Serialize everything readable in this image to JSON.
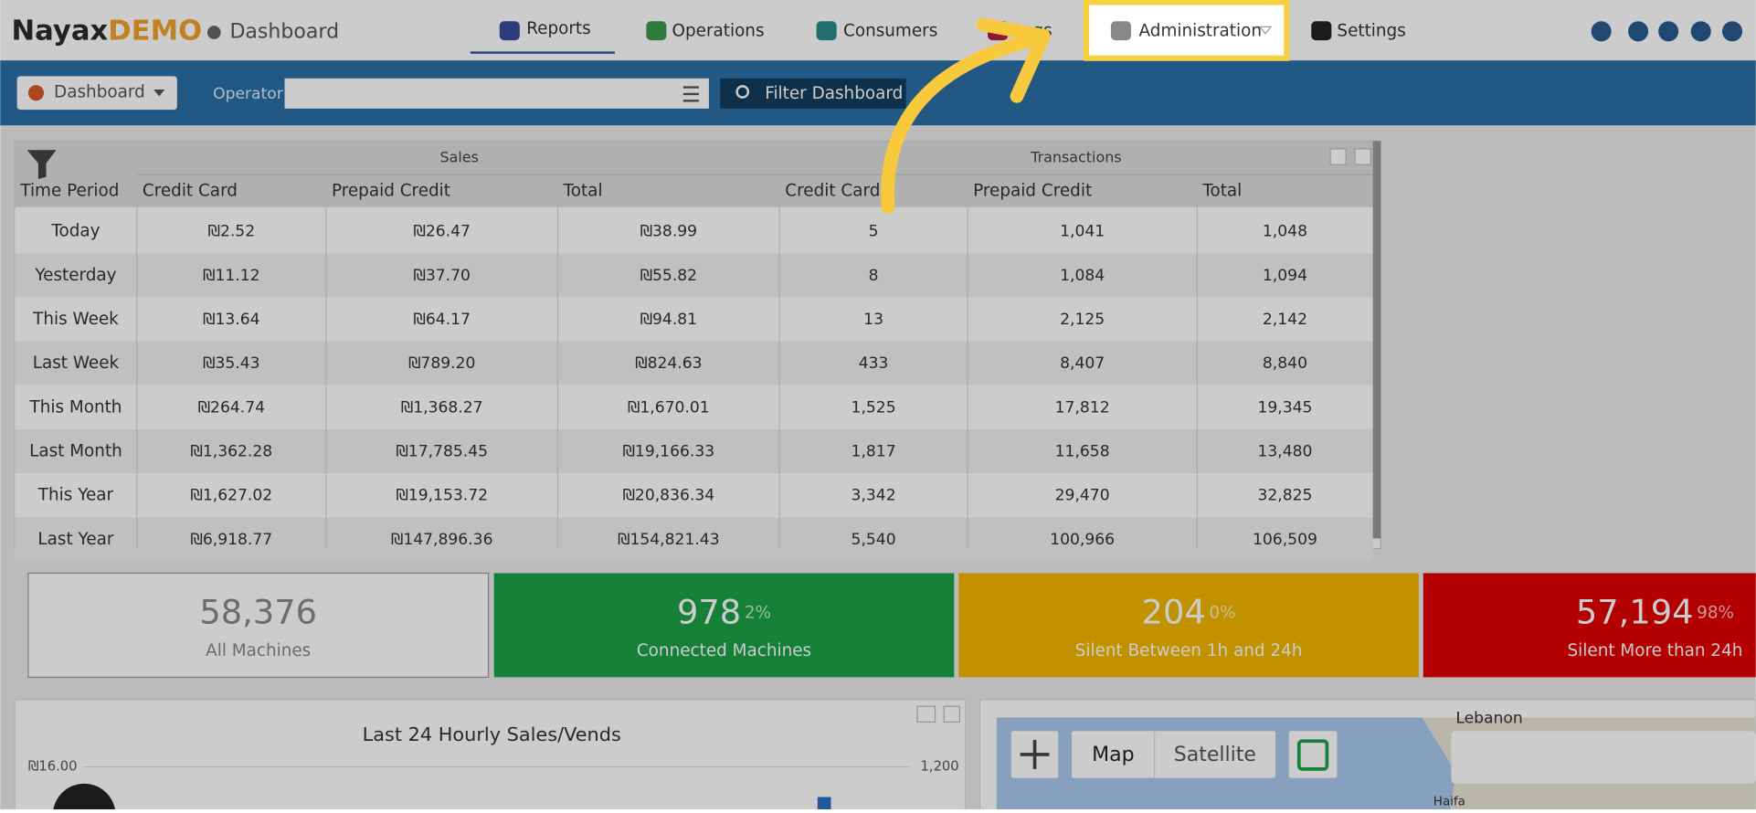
{
  "header": {
    "logo": "Nayax",
    "logo_suffix": "DEMO",
    "page": "Dashboard",
    "nav": [
      "Reports",
      "Operations",
      "Consumers",
      "Logs",
      "Administration",
      "Settings"
    ]
  },
  "toolbar": {
    "dashboard_button": "Dashboard",
    "operator_label": "Operator",
    "filter_button": "Filter Dashboard"
  },
  "table": {
    "group_headers": [
      "Sales",
      "Transactions"
    ],
    "columns": [
      "Time Period",
      "Credit Card",
      "Prepaid Credit",
      "Total",
      "Credit Card",
      "Prepaid Credit",
      "Total"
    ],
    "rows": [
      [
        "Today",
        "₪2.52",
        "₪26.47",
        "₪38.99",
        "5",
        "1,041",
        "1,048"
      ],
      [
        "Yesterday",
        "₪11.12",
        "₪37.70",
        "₪55.82",
        "8",
        "1,084",
        "1,094"
      ],
      [
        "This Week",
        "₪13.64",
        "₪64.17",
        "₪94.81",
        "13",
        "2,125",
        "2,142"
      ],
      [
        "Last Week",
        "₪35.43",
        "₪789.20",
        "₪824.63",
        "433",
        "8,407",
        "8,840"
      ],
      [
        "This Month",
        "₪264.74",
        "₪1,368.27",
        "₪1,670.01",
        "1,525",
        "17,812",
        "19,345"
      ],
      [
        "Last Month",
        "₪1,362.28",
        "₪17,785.45",
        "₪19,166.33",
        "1,817",
        "11,658",
        "13,480"
      ],
      [
        "This Year",
        "₪1,627.02",
        "₪19,153.72",
        "₪20,836.34",
        "3,342",
        "29,470",
        "32,825"
      ],
      [
        "Last Year",
        "₪6,918.77",
        "₪147,896.36",
        "₪154,821.43",
        "5,540",
        "100,966",
        "106,509"
      ]
    ]
  },
  "status_cards": [
    {
      "value": "58,376",
      "label": "All Machines"
    },
    {
      "value": "978",
      "percent": "2%",
      "label": "Connected Machines"
    },
    {
      "value": "204",
      "percent": "0%",
      "label": "Silent Between 1h and 24h"
    },
    {
      "value": "57,194",
      "percent": "98%",
      "label": "Silent More than 24h"
    }
  ],
  "chart_panel": {
    "title": "Last 24 Hourly Sales/Vends",
    "left_axis_top": "₪16.00",
    "right_axis_top": "1,200"
  },
  "map": {
    "buttons": [
      "Map",
      "Satellite"
    ],
    "labels": [
      "Lebanon",
      "Haifa"
    ]
  }
}
